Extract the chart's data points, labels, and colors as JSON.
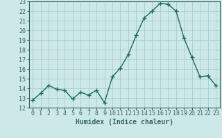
{
  "x": [
    0,
    1,
    2,
    3,
    4,
    5,
    6,
    7,
    8,
    9,
    10,
    11,
    12,
    13,
    14,
    15,
    16,
    17,
    18,
    19,
    20,
    21,
    22,
    23
  ],
  "y": [
    12.8,
    13.5,
    14.3,
    13.9,
    13.8,
    12.9,
    13.6,
    13.3,
    13.8,
    12.5,
    15.2,
    16.1,
    17.5,
    19.5,
    21.3,
    22.0,
    22.8,
    22.7,
    22.0,
    19.2,
    17.2,
    15.2,
    15.3,
    14.3
  ],
  "line_color": "#1a6b5a",
  "marker": "+",
  "marker_size": 4,
  "bg_color": "#cce8e8",
  "grid_color": "#b0d0d0",
  "xlabel": "Humidex (Indice chaleur)",
  "ylim": [
    12,
    23
  ],
  "xlim": [
    -0.5,
    23.5
  ],
  "yticks": [
    12,
    13,
    14,
    15,
    16,
    17,
    18,
    19,
    20,
    21,
    22,
    23
  ],
  "xticks": [
    0,
    1,
    2,
    3,
    4,
    5,
    6,
    7,
    8,
    9,
    10,
    11,
    12,
    13,
    14,
    15,
    16,
    17,
    18,
    19,
    20,
    21,
    22,
    23
  ],
  "tick_fontsize": 6,
  "xlabel_fontsize": 7,
  "axis_color": "#336655",
  "spine_color": "#336655"
}
